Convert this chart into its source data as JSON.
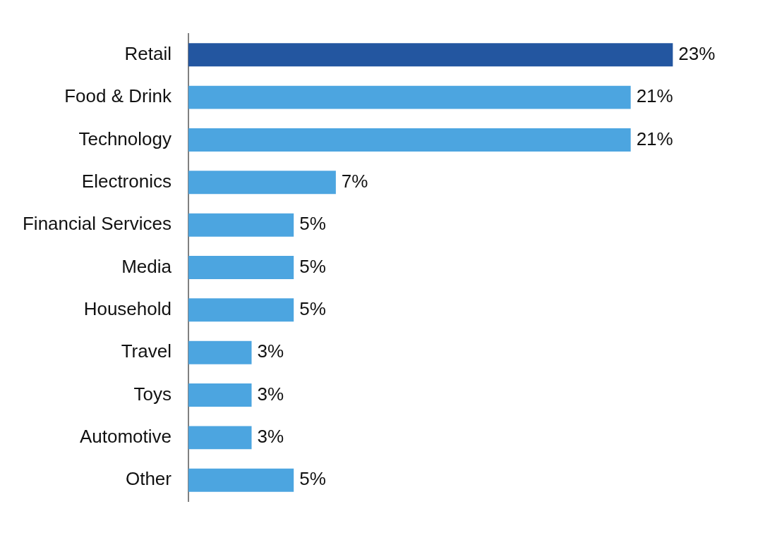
{
  "chart_data": {
    "type": "bar",
    "orientation": "horizontal",
    "categories": [
      "Retail",
      "Food & Drink",
      "Technology",
      "Electronics",
      "Financial Services",
      "Media",
      "Household",
      "Travel",
      "Toys",
      "Automotive",
      "Other"
    ],
    "values": [
      23,
      21,
      21,
      7,
      5,
      5,
      5,
      3,
      3,
      3,
      5
    ],
    "colors": [
      "#2356a0",
      "#4ca5e0",
      "#4ca5e0",
      "#4ca5e0",
      "#4ca5e0",
      "#4ca5e0",
      "#4ca5e0",
      "#4ca5e0",
      "#4ca5e0",
      "#4ca5e0",
      "#4ca5e0"
    ],
    "value_labels": [
      "23%",
      "21%",
      "21%",
      "7%",
      "5%",
      "5%",
      "5%",
      "3%",
      "3%",
      "3%",
      "5%"
    ]
  }
}
